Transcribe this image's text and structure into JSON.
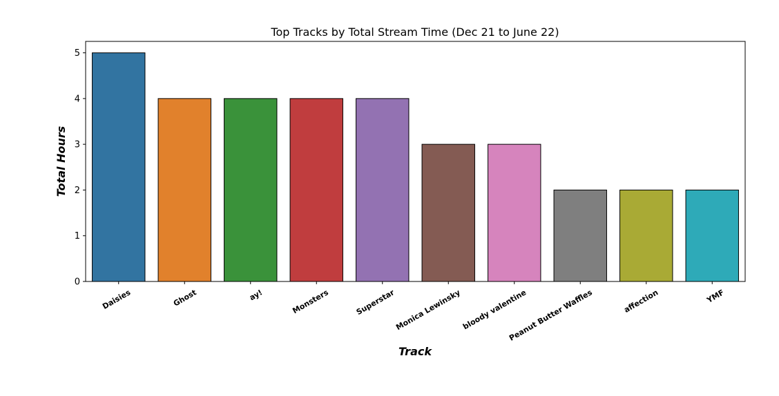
{
  "chart_data": {
    "type": "bar",
    "title": "Top Tracks by Total Stream Time (Dec 21 to June 22)",
    "xlabel": "Track",
    "ylabel": "Total Hours",
    "categories": [
      "Daisies",
      "Ghost",
      "ay!",
      "Monsters",
      "Superstar",
      "Monica Lewinsky",
      "bloody valentine",
      "Peanut Butter Waffles",
      "affection",
      "YMF"
    ],
    "values": [
      5,
      4,
      4,
      4,
      4,
      3,
      3,
      2,
      2,
      2
    ],
    "colors": [
      "#3274a1",
      "#e1812c",
      "#3a923a",
      "#c03d3e",
      "#9372b2",
      "#845b53",
      "#d684bd",
      "#7f7f7f",
      "#a9aa35",
      "#2eaab8"
    ],
    "yticks": [
      0,
      1,
      2,
      3,
      4,
      5
    ],
    "ylim": [
      0,
      5.25
    ],
    "grid": false,
    "legend": false
  }
}
